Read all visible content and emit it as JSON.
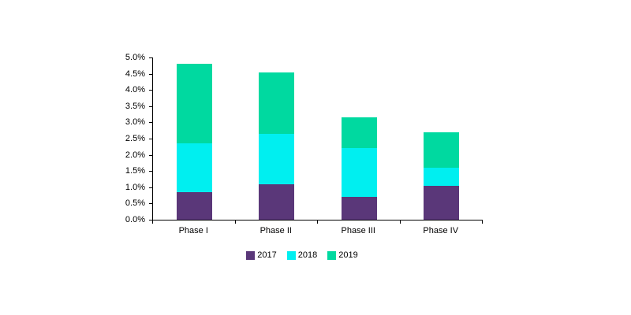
{
  "colors": {
    "background": "#ffffff",
    "axis": "#000000",
    "text": "#000000",
    "series_2017": "#5a3779",
    "series_2018": "#00eff0",
    "series_2019": "#00d9a0"
  },
  "chart_data": {
    "type": "bar",
    "stacked": true,
    "title": "",
    "xlabel": "",
    "ylabel": "",
    "grid": false,
    "legend_position": "bottom",
    "categories": [
      "Phase I",
      "Phase II",
      "Phase III",
      "Phase IV"
    ],
    "series": [
      {
        "name": "2017",
        "color": "#5a3779",
        "values": [
          0.85,
          1.1,
          0.7,
          1.05
        ]
      },
      {
        "name": "2018",
        "color": "#00eff0",
        "values": [
          1.5,
          1.55,
          1.5,
          0.55
        ]
      },
      {
        "name": "2019",
        "color": "#00d9a0",
        "values": [
          2.45,
          1.9,
          0.95,
          1.1
        ]
      }
    ],
    "stack_totals": [
      4.8,
      4.55,
      3.15,
      2.7
    ],
    "ylim": [
      0,
      5
    ],
    "ytick_step": 0.5,
    "ytick_labels": [
      "0.0%",
      "0.5%",
      "1.0%",
      "1.5%",
      "2.0%",
      "2.5%",
      "3.0%",
      "3.5%",
      "4.0%",
      "4.5%",
      "5.0%"
    ]
  },
  "legend": {
    "items": [
      {
        "label": "2017",
        "color": "#5a3779"
      },
      {
        "label": "2018",
        "color": "#00eff0"
      },
      {
        "label": "2019",
        "color": "#00d9a0"
      }
    ]
  }
}
